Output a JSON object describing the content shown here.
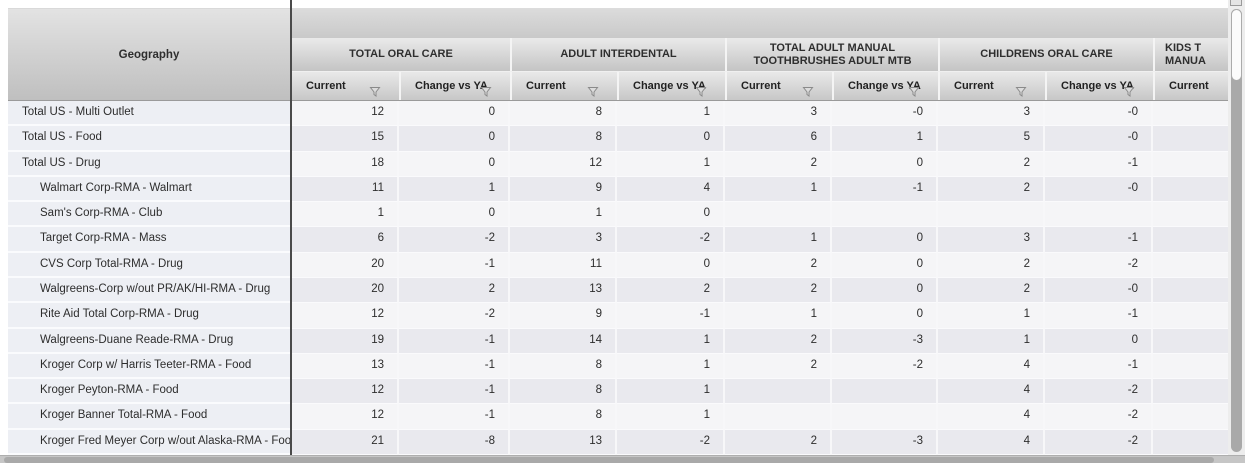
{
  "grid": {
    "row_header_title": "Geography",
    "groups": [
      {
        "lines": [
          "TOTAL ORAL CARE"
        ],
        "columns": [
          "Current",
          "Change vs YA"
        ]
      },
      {
        "lines": [
          "ADULT INTERDENTAL"
        ],
        "columns": [
          "Current",
          "Change vs YA"
        ]
      },
      {
        "lines": [
          "TOTAL ADULT MANUAL",
          "TOOTHBRUSHES ADULT MTB"
        ],
        "columns": [
          "Current",
          "Change vs YA"
        ]
      },
      {
        "lines": [
          "CHILDRENS ORAL CARE"
        ],
        "columns": [
          "Current",
          "Change vs YA"
        ]
      },
      {
        "lines": [
          "KIDS T",
          "MANUA"
        ],
        "columns": [
          "Current"
        ]
      }
    ],
    "rows": [
      {
        "label": "Total US - Multi Outlet",
        "indent": 0,
        "values": [
          "12",
          "0",
          "8",
          "1",
          "3",
          "-0",
          "3",
          "-0",
          ""
        ]
      },
      {
        "label": "Total US - Food",
        "indent": 0,
        "values": [
          "15",
          "0",
          "8",
          "0",
          "6",
          "1",
          "5",
          "-0",
          ""
        ]
      },
      {
        "label": "Total US - Drug",
        "indent": 0,
        "values": [
          "18",
          "0",
          "12",
          "1",
          "2",
          "0",
          "2",
          "-1",
          ""
        ]
      },
      {
        "label": "Walmart Corp-RMA - Walmart",
        "indent": 1,
        "values": [
          "11",
          "1",
          "9",
          "4",
          "1",
          "-1",
          "2",
          "-0",
          ""
        ]
      },
      {
        "label": "Sam's Corp-RMA - Club",
        "indent": 1,
        "values": [
          "1",
          "0",
          "1",
          "0",
          "",
          "",
          "",
          "",
          ""
        ]
      },
      {
        "label": "Target Corp-RMA - Mass",
        "indent": 1,
        "values": [
          "6",
          "-2",
          "3",
          "-2",
          "1",
          "0",
          "3",
          "-1",
          ""
        ]
      },
      {
        "label": "CVS Corp Total-RMA - Drug",
        "indent": 1,
        "values": [
          "20",
          "-1",
          "11",
          "0",
          "2",
          "0",
          "2",
          "-2",
          ""
        ]
      },
      {
        "label": "Walgreens-Corp w/out PR/AK/HI-RMA - Drug",
        "indent": 1,
        "values": [
          "20",
          "2",
          "13",
          "2",
          "2",
          "0",
          "2",
          "-0",
          ""
        ]
      },
      {
        "label": "Rite Aid Total Corp-RMA - Drug",
        "indent": 1,
        "values": [
          "12",
          "-2",
          "9",
          "-1",
          "1",
          "0",
          "1",
          "-1",
          ""
        ]
      },
      {
        "label": "Walgreens-Duane Reade-RMA - Drug",
        "indent": 1,
        "values": [
          "19",
          "-1",
          "14",
          "1",
          "2",
          "-3",
          "1",
          "0",
          ""
        ]
      },
      {
        "label": "Kroger Corp w/ Harris Teeter-RMA - Food",
        "indent": 1,
        "values": [
          "13",
          "-1",
          "8",
          "1",
          "2",
          "-2",
          "4",
          "-1",
          ""
        ]
      },
      {
        "label": "Kroger Peyton-RMA - Food",
        "indent": 1,
        "values": [
          "12",
          "-1",
          "8",
          "1",
          "",
          "",
          "4",
          "-2",
          ""
        ]
      },
      {
        "label": "Kroger Banner Total-RMA - Food",
        "indent": 1,
        "values": [
          "12",
          "-1",
          "8",
          "1",
          "",
          "",
          "4",
          "-2",
          ""
        ]
      },
      {
        "label": "Kroger Fred Meyer Corp w/out Alaska-RMA - Food",
        "indent": 1,
        "values": [
          "21",
          "-8",
          "13",
          "-2",
          "2",
          "-3",
          "4",
          "-2",
          ""
        ]
      }
    ]
  },
  "icons": {
    "column_filter": "funnel-filter-icon",
    "top_right": "scroll-corner-icon"
  },
  "colors": {
    "panel_divider": "#4a4a4a",
    "header_gradient_top": "#eaeaea",
    "header_gradient_bottom": "#c4c4c4",
    "row_header_bg": "#edeff4",
    "row_band_light": "#f5f5f7",
    "row_band_dark": "#e9e9ee",
    "text": "#2d2d2d",
    "scrollbar_track": "#a9a9a9",
    "scrollbar_thumb": "#fbfbfb"
  }
}
